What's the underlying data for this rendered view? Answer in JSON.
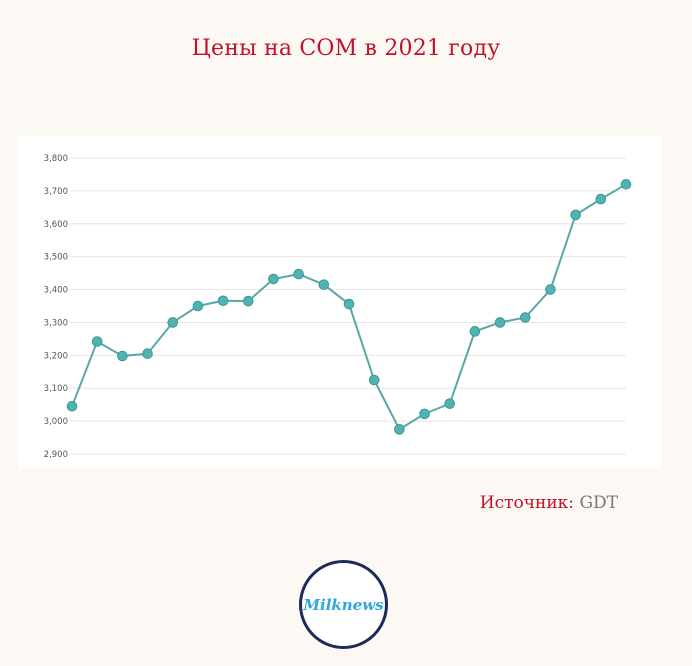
{
  "header": {
    "title": "Цены на СОМ в 2021 году"
  },
  "source": {
    "label": "Источник: ",
    "value": "GDT"
  },
  "logo": {
    "text": "Milknews"
  },
  "colors": {
    "title": "#c0122b",
    "line": "#5aa8a6",
    "point": "#4fb3b2",
    "grid": "#e6e6e6"
  },
  "chart_data": {
    "type": "line",
    "title": "Цены на СОМ в 2021 году",
    "xlabel": "",
    "ylabel": "",
    "ylim": [
      2900,
      3800
    ],
    "yticks": [
      2900,
      3000,
      3100,
      3200,
      3300,
      3400,
      3500,
      3600,
      3700,
      3800
    ],
    "ytick_labels": [
      "2,900",
      "3,000",
      "3,100",
      "3,200",
      "3,300",
      "3,400",
      "3,500",
      "3,600",
      "3,700",
      "3,800"
    ],
    "grid": true,
    "legend": "none",
    "series": [
      {
        "values": [
          3045,
          3242,
          3198,
          3205,
          3300,
          3350,
          3366,
          3365,
          3432,
          3447,
          3415,
          3356,
          3125,
          2975,
          3022,
          3053,
          3273,
          3300,
          3315,
          3400,
          3627,
          3675,
          3720
        ]
      }
    ]
  }
}
